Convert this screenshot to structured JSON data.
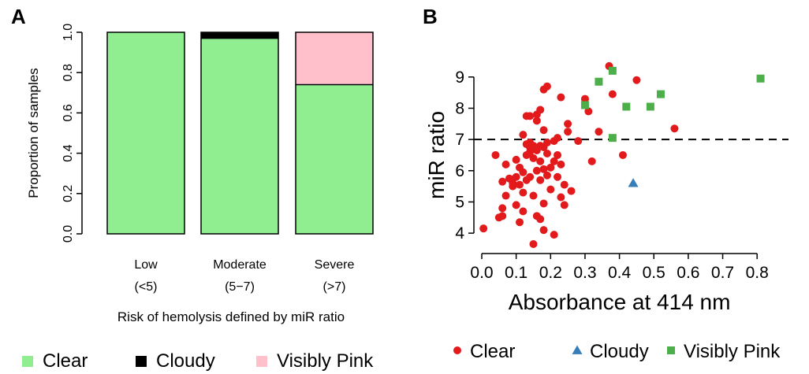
{
  "colors": {
    "clear": "#90ee90",
    "cloudy": "#000000",
    "visibly_pink": "#ffc0cb",
    "scatter_clear": "#e31a1c",
    "scatter_cloudy": "#377eb8",
    "scatter_pink": "#4daf4a"
  },
  "chart_data": [
    {
      "panel": "A",
      "type": "bar",
      "stacked": true,
      "title": "",
      "ylabel": "Proportion of samples",
      "xlabel": "Risk of hemolysis defined by miR ratio",
      "ylim": [
        0,
        1
      ],
      "yticks": [
        "0.0",
        "0.2",
        "0.4",
        "0.6",
        "0.8",
        "1.0"
      ],
      "categories": [
        {
          "line1": "Low",
          "line2": "(<5)"
        },
        {
          "line1": "Moderate",
          "line2": "(5−7)"
        },
        {
          "line1": "Severe",
          "line2": "(>7)"
        }
      ],
      "series": [
        {
          "name": "Clear",
          "color": "#90ee90",
          "values": [
            1.0,
            0.97,
            0.74
          ]
        },
        {
          "name": "Cloudy",
          "color": "#000000",
          "values": [
            0.0,
            0.03,
            0.0
          ]
        },
        {
          "name": "Visibly Pink",
          "color": "#ffc0cb",
          "values": [
            0.0,
            0.0,
            0.26
          ]
        }
      ],
      "legend_position": "bottom",
      "grid": false
    },
    {
      "panel": "B",
      "type": "scatter",
      "title": "",
      "xlabel": "Absorbance at 414 nm",
      "ylabel": "miR ratio",
      "xlim": [
        0,
        0.85
      ],
      "ylim": [
        3.6,
        9.6
      ],
      "xticks": [
        "0.0",
        "0.1",
        "0.2",
        "0.3",
        "0.4",
        "0.5",
        "0.6",
        "0.7",
        "0.8"
      ],
      "yticks": [
        "4",
        "5",
        "6",
        "7",
        "8",
        "9"
      ],
      "reference_line": {
        "y": 7,
        "style": "dashed"
      },
      "legend_position": "bottom",
      "grid": false,
      "series": [
        {
          "name": "Clear",
          "marker": "circle",
          "color": "#e31a1c",
          "points": [
            [
              0.005,
              4.15
            ],
            [
              0.04,
              6.5
            ],
            [
              0.05,
              4.5
            ],
            [
              0.06,
              4.55
            ],
            [
              0.06,
              5.65
            ],
            [
              0.06,
              4.8
            ],
            [
              0.07,
              6.2
            ],
            [
              0.07,
              5.2
            ],
            [
              0.08,
              5.75
            ],
            [
              0.09,
              5.6
            ],
            [
              0.09,
              5.5
            ],
            [
              0.1,
              6.35
            ],
            [
              0.1,
              5.8
            ],
            [
              0.1,
              4.9
            ],
            [
              0.11,
              6.1
            ],
            [
              0.11,
              5.55
            ],
            [
              0.11,
              4.35
            ],
            [
              0.12,
              7.15
            ],
            [
              0.12,
              5.95
            ],
            [
              0.12,
              5.3
            ],
            [
              0.12,
              4.7
            ],
            [
              0.13,
              7.75
            ],
            [
              0.13,
              6.85
            ],
            [
              0.13,
              6.5
            ],
            [
              0.13,
              5.7
            ],
            [
              0.14,
              7.75
            ],
            [
              0.14,
              6.75
            ],
            [
              0.14,
              6.9
            ],
            [
              0.14,
              6.6
            ],
            [
              0.14,
              5.8
            ],
            [
              0.15,
              6.8
            ],
            [
              0.15,
              6.4
            ],
            [
              0.15,
              5.2
            ],
            [
              0.15,
              3.65
            ],
            [
              0.16,
              7.8
            ],
            [
              0.16,
              7.6
            ],
            [
              0.16,
              6.65
            ],
            [
              0.16,
              6.0
            ],
            [
              0.16,
              4.55
            ],
            [
              0.17,
              7.95
            ],
            [
              0.17,
              6.8
            ],
            [
              0.17,
              6.3
            ],
            [
              0.17,
              5.7
            ],
            [
              0.17,
              4.45
            ],
            [
              0.18,
              8.6
            ],
            [
              0.18,
              7.3
            ],
            [
              0.18,
              6.75
            ],
            [
              0.18,
              6.05
            ],
            [
              0.18,
              4.95
            ],
            [
              0.18,
              4.1
            ],
            [
              0.19,
              8.7
            ],
            [
              0.19,
              6.9
            ],
            [
              0.19,
              6.55
            ],
            [
              0.19,
              5.85
            ],
            [
              0.2,
              6.1
            ],
            [
              0.2,
              5.4
            ],
            [
              0.21,
              6.95
            ],
            [
              0.21,
              6.3
            ],
            [
              0.21,
              3.95
            ],
            [
              0.22,
              7.05
            ],
            [
              0.22,
              6.5
            ],
            [
              0.22,
              5.8
            ],
            [
              0.23,
              8.35
            ],
            [
              0.23,
              6.2
            ],
            [
              0.23,
              5.15
            ],
            [
              0.24,
              5.55
            ],
            [
              0.24,
              4.9
            ],
            [
              0.25,
              7.5
            ],
            [
              0.25,
              7.25
            ],
            [
              0.26,
              5.35
            ],
            [
              0.28,
              6.95
            ],
            [
              0.3,
              8.3
            ],
            [
              0.31,
              7.9
            ],
            [
              0.32,
              6.3
            ],
            [
              0.34,
              7.25
            ],
            [
              0.37,
              9.35
            ],
            [
              0.38,
              8.45
            ],
            [
              0.41,
              6.5
            ],
            [
              0.45,
              8.9
            ],
            [
              0.56,
              7.35
            ]
          ]
        },
        {
          "name": "Cloudy",
          "marker": "triangle",
          "color": "#377eb8",
          "points": [
            [
              0.44,
              5.6
            ]
          ]
        },
        {
          "name": "Visibly Pink",
          "marker": "square",
          "color": "#4daf4a",
          "points": [
            [
              0.3,
              8.1
            ],
            [
              0.34,
              8.85
            ],
            [
              0.38,
              9.2
            ],
            [
              0.38,
              7.05
            ],
            [
              0.42,
              8.05
            ],
            [
              0.49,
              8.05
            ],
            [
              0.52,
              8.45
            ],
            [
              0.81,
              8.95
            ]
          ]
        }
      ]
    }
  ],
  "panel_a": {
    "letter": "A",
    "legend": [
      {
        "label": "Clear",
        "color": "#90ee90"
      },
      {
        "label": "Cloudy",
        "color": "#000000"
      },
      {
        "label": "Visibly Pink",
        "color": "#ffc0cb"
      }
    ]
  },
  "panel_b": {
    "letter": "B",
    "legend": [
      {
        "label": "Clear",
        "marker": "circle",
        "color": "#e31a1c"
      },
      {
        "label": "Cloudy",
        "marker": "triangle",
        "color": "#377eb8"
      },
      {
        "label": "Visibly Pink",
        "marker": "square",
        "color": "#4daf4a"
      }
    ]
  }
}
